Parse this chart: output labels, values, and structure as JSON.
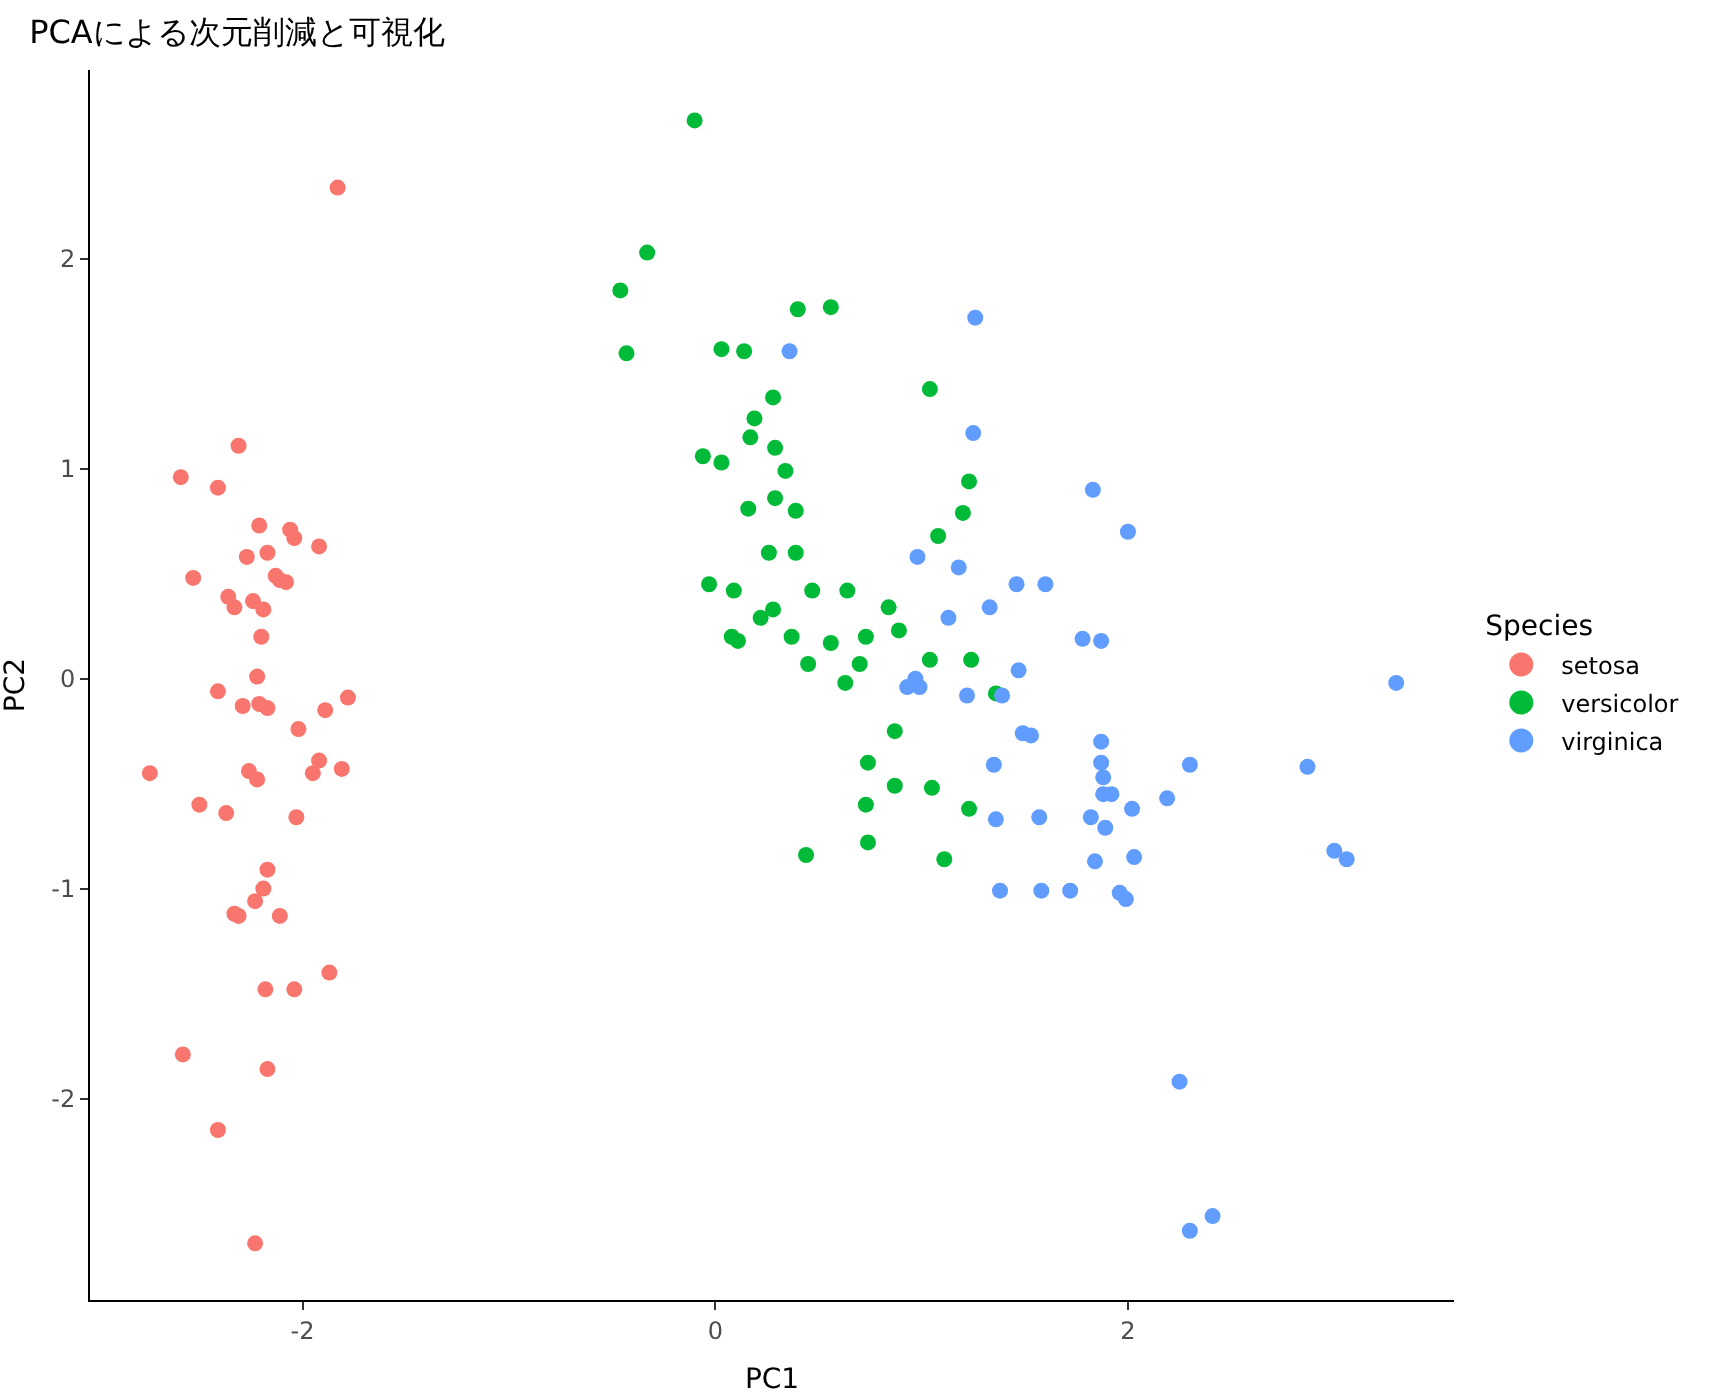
{
  "chart_data": {
    "type": "scatter",
    "title": "PCAによる次元削減と可視化",
    "xlabel": "PC1",
    "ylabel": "PC2",
    "legend_title": "Species",
    "legend": "right",
    "grid": false,
    "marker": "circle",
    "xlim": [
      -3.03,
      3.58
    ],
    "ylim": [
      -2.96,
      2.9
    ],
    "xticks": [
      -2,
      0,
      2
    ],
    "yticks": [
      -2,
      -1,
      0,
      1,
      2
    ],
    "series": [
      {
        "name": "setosa",
        "color": "#f8766d",
        "x": [
          -1.83,
          -2.31,
          -2.59,
          -2.41,
          -2.21,
          -2.04,
          -2.06,
          -1.92,
          -2.17,
          -2.27,
          -2.13,
          -2.11,
          -2.08,
          -2.53,
          -2.36,
          -2.33,
          -2.24,
          -2.19,
          -2.2,
          -2.41,
          -2.22,
          -2.21,
          -2.29,
          -2.17,
          -2.02,
          -1.89,
          -1.78,
          -1.92,
          -1.95,
          -2.26,
          -2.22,
          -2.5,
          -2.37,
          -2.03,
          -2.74,
          -1.81,
          -2.17,
          -2.19,
          -2.23,
          -2.11,
          -2.33,
          -2.31,
          -2.18,
          -2.04,
          -1.87,
          -2.58,
          -2.17,
          -2.41,
          -2.23
        ],
        "values": [
          2.34,
          1.11,
          0.96,
          0.91,
          0.73,
          0.67,
          0.71,
          0.63,
          0.6,
          0.58,
          0.49,
          0.47,
          0.46,
          0.48,
          0.39,
          0.34,
          0.37,
          0.33,
          0.2,
          -0.06,
          0.01,
          -0.12,
          -0.13,
          -0.14,
          -0.24,
          -0.15,
          -0.09,
          -0.39,
          -0.45,
          -0.44,
          -0.48,
          -0.6,
          -0.64,
          -0.66,
          -0.45,
          -0.43,
          -0.91,
          -1.0,
          -1.06,
          -1.13,
          -1.12,
          -1.13,
          -1.48,
          -1.48,
          -1.4,
          -1.79,
          -1.86,
          -2.15,
          -2.69
        ]
      },
      {
        "name": "versicolor",
        "color": "#00ba38",
        "x": [
          -0.1,
          -0.33,
          -0.46,
          -0.43,
          0.4,
          0.56,
          0.03,
          0.14,
          0.28,
          0.19,
          1.04,
          0.17,
          -0.06,
          0.03,
          0.29,
          0.34,
          0.29,
          0.16,
          0.39,
          1.23,
          1.2,
          1.08,
          0.26,
          -0.03,
          0.39,
          0.09,
          0.47,
          0.64,
          0.84,
          0.28,
          0.22,
          0.08,
          0.37,
          0.73,
          0.89,
          0.11,
          0.45,
          0.56,
          0.7,
          0.63,
          1.24,
          1.04,
          0.74,
          0.87,
          1.36,
          0.87,
          0.73,
          1.05,
          1.23,
          0.44,
          0.74,
          1.11
        ],
        "values": [
          2.66,
          2.03,
          1.85,
          1.55,
          1.76,
          1.77,
          1.57,
          1.56,
          1.34,
          1.24,
          1.38,
          1.15,
          1.06,
          1.03,
          1.1,
          0.99,
          0.86,
          0.81,
          0.8,
          0.94,
          0.79,
          0.68,
          0.6,
          0.45,
          0.6,
          0.42,
          0.42,
          0.42,
          0.34,
          0.33,
          0.29,
          0.2,
          0.2,
          0.2,
          0.23,
          0.18,
          0.07,
          0.17,
          0.07,
          -0.02,
          0.09,
          0.09,
          -0.4,
          -0.25,
          -0.07,
          -0.51,
          -0.6,
          -0.52,
          -0.62,
          -0.84,
          -0.78,
          -0.86
        ]
      },
      {
        "name": "virginica",
        "color": "#619cff",
        "x": [
          0.36,
          1.26,
          1.25,
          1.83,
          2.0,
          0.98,
          1.18,
          1.13,
          1.33,
          1.46,
          1.6,
          1.47,
          0.97,
          0.93,
          1.39,
          1.49,
          1.53,
          1.78,
          1.87,
          3.3,
          1.35,
          1.36,
          1.57,
          1.87,
          1.87,
          1.88,
          1.88,
          1.82,
          2.02,
          1.92,
          1.84,
          2.03,
          1.96,
          1.99,
          1.58,
          1.72,
          1.38,
          2.3,
          2.19,
          2.87,
          3.0,
          3.06,
          2.25,
          2.3,
          2.41,
          1.89,
          1.22,
          0.99
        ],
        "values": [
          1.56,
          1.72,
          1.17,
          0.9,
          0.7,
          0.58,
          0.53,
          0.29,
          0.34,
          0.45,
          0.45,
          0.04,
          0.0,
          -0.04,
          -0.08,
          -0.26,
          -0.27,
          0.19,
          0.18,
          -0.02,
          -0.41,
          -0.67,
          -0.66,
          -0.3,
          -0.4,
          -0.47,
          -0.55,
          -0.66,
          -0.62,
          -0.55,
          -0.87,
          -0.85,
          -1.02,
          -1.05,
          -1.01,
          -1.01,
          -1.01,
          -0.41,
          -0.57,
          -0.42,
          -0.82,
          -0.86,
          -1.92,
          -2.63,
          -2.56,
          -0.71,
          -0.08,
          -0.04
        ]
      }
    ]
  }
}
